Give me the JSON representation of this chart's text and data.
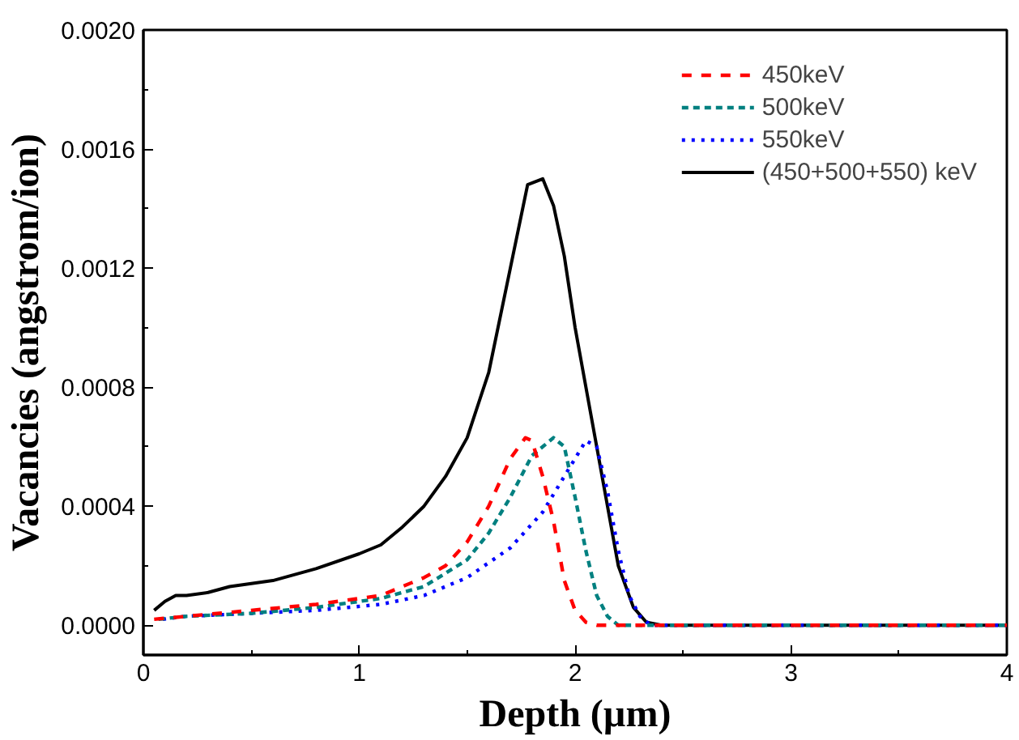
{
  "chart_data": {
    "type": "line",
    "xlabel": "Depth (µm)",
    "ylabel": "Vacancies (angstrom/ion)",
    "xlim": [
      0,
      4
    ],
    "ylim": [
      -0.0001,
      0.002
    ],
    "xticks": [
      0,
      1,
      2,
      3,
      4
    ],
    "yticks": [
      {
        "value": 0,
        "label": "0.0000"
      },
      {
        "value": 0.0004,
        "label": "0.0004"
      },
      {
        "value": 0.0008,
        "label": "0.0008"
      },
      {
        "value": 0.0012,
        "label": "0.0012"
      },
      {
        "value": 0.0016,
        "label": "0.0016"
      },
      {
        "value": 0.002,
        "label": "0.0020"
      }
    ],
    "grid": false,
    "legend": "top right",
    "marker": "none",
    "series": [
      {
        "name": "450keV",
        "color": "#ff0000",
        "line_style": "dashed",
        "x": [
          0.05,
          0.2,
          0.5,
          0.8,
          1.1,
          1.3,
          1.4,
          1.5,
          1.6,
          1.7,
          1.77,
          1.8,
          1.85,
          1.9,
          1.95,
          2.0,
          2.05,
          2.1,
          4
        ],
        "values": [
          2e-05,
          3e-05,
          5e-05,
          7e-05,
          0.0001,
          0.00016,
          0.0002,
          0.00028,
          0.0004,
          0.00056,
          0.00063,
          0.00062,
          0.0005,
          0.00035,
          0.00015,
          5e-05,
          1e-05,
          0,
          0
        ]
      },
      {
        "name": "500keV",
        "color": "#008080",
        "line_style": "dashed",
        "x": [
          0.07,
          0.2,
          0.5,
          0.8,
          1.1,
          1.3,
          1.5,
          1.6,
          1.7,
          1.8,
          1.9,
          1.95,
          2.0,
          2.05,
          2.1,
          2.15,
          2.2,
          4
        ],
        "values": [
          2e-05,
          3e-05,
          4e-05,
          6e-05,
          9e-05,
          0.00013,
          0.00022,
          0.00031,
          0.00043,
          0.00057,
          0.00063,
          0.0006,
          0.00043,
          0.00025,
          0.0001,
          3e-05,
          0,
          0
        ]
      },
      {
        "name": "550keV",
        "color": "#0000ff",
        "line_style": "dotted",
        "x": [
          0.09,
          0.2,
          0.5,
          0.8,
          1.1,
          1.3,
          1.5,
          1.7,
          1.85,
          1.95,
          2.05,
          2.1,
          2.15,
          2.2,
          2.25,
          2.3,
          2.35,
          4
        ],
        "values": [
          2e-05,
          3e-05,
          4e-05,
          5e-05,
          7e-05,
          0.0001,
          0.00016,
          0.00026,
          0.00038,
          0.0005,
          0.00062,
          0.0006,
          0.00045,
          0.00025,
          0.0001,
          3e-05,
          0,
          0
        ]
      },
      {
        "name": "(450+500+550) keV",
        "color": "#000000",
        "line_style": "solid",
        "x": [
          0.05,
          0.1,
          0.15,
          0.2,
          0.3,
          0.4,
          0.6,
          0.8,
          1.0,
          1.1,
          1.2,
          1.3,
          1.4,
          1.5,
          1.6,
          1.7,
          1.78,
          1.85,
          1.9,
          1.95,
          2.0,
          2.1,
          2.2,
          2.27,
          2.33,
          2.4,
          4
        ],
        "values": [
          5e-05,
          8e-05,
          0.0001,
          0.0001,
          0.00011,
          0.00013,
          0.00015,
          0.00019,
          0.00024,
          0.00027,
          0.00033,
          0.0004,
          0.0005,
          0.00063,
          0.00085,
          0.0012,
          0.00148,
          0.0015,
          0.00141,
          0.00124,
          0.001,
          0.0006,
          0.0002,
          6e-05,
          1e-05,
          0,
          0
        ]
      }
    ]
  }
}
